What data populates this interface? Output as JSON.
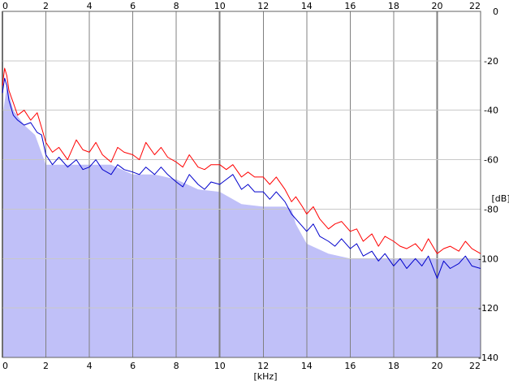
{
  "chart_data": {
    "type": "area",
    "title": "",
    "xlabel": "[kHz]",
    "ylabel": "[dB]",
    "xlim": [
      0,
      22
    ],
    "ylim": [
      -140,
      0
    ],
    "x_ticks": [
      0,
      2,
      4,
      6,
      8,
      10,
      12,
      14,
      16,
      18,
      20,
      22
    ],
    "x_tick_labels": [
      "0",
      "2",
      "4",
      "6",
      "8",
      "10",
      "12",
      "14",
      "16",
      "18",
      "20",
      "22"
    ],
    "y_ticks": [
      0,
      -20,
      -40,
      -60,
      -80,
      -100,
      -120,
      -140
    ],
    "y_tick_labels": [
      "0",
      "-20",
      "-40",
      "-60",
      "-80",
      "-100",
      "-120",
      "-140"
    ],
    "grid": true,
    "legend": "none",
    "colors": {
      "background": "#c0c0f8",
      "grid": "#808080",
      "series_red": "#ff0000",
      "series_blue": "#0000cc",
      "fill": "#c0c0f8"
    },
    "fill_area": {
      "x": [
        0,
        0.2,
        0.5,
        1.0,
        1.5,
        2.0,
        3.0,
        4.0,
        5.0,
        6.0,
        7.0,
        8.0,
        9.0,
        10.0,
        11.0,
        12.0,
        13.0,
        13.3,
        13.5,
        14.0,
        15.0,
        16.0,
        17.0,
        18.0,
        18.2,
        19.0,
        20.0,
        21.0,
        22.0
      ],
      "y": [
        -43,
        -30,
        -40,
        -46,
        -50,
        -62,
        -62,
        -62,
        -62,
        -66,
        -66,
        -68,
        -72,
        -73,
        -78,
        -79,
        -79,
        -80,
        -86,
        -94,
        -98,
        -100,
        -100,
        -100,
        -100,
        -100,
        -100,
        -100,
        -100
      ]
    },
    "series": [
      {
        "color": "#ff0000",
        "x": [
          0.0,
          0.1,
          0.2,
          0.3,
          0.5,
          0.7,
          1.0,
          1.3,
          1.6,
          1.8,
          2.0,
          2.3,
          2.6,
          3.0,
          3.4,
          3.7,
          4.0,
          4.3,
          4.6,
          5.0,
          5.3,
          5.6,
          6.0,
          6.3,
          6.6,
          7.0,
          7.3,
          7.6,
          8.0,
          8.3,
          8.6,
          9.0,
          9.3,
          9.6,
          10.0,
          10.3,
          10.6,
          11.0,
          11.3,
          11.6,
          12.0,
          12.3,
          12.6,
          13.0,
          13.3,
          13.5,
          13.8,
          14.0,
          14.3,
          14.6,
          15.0,
          15.3,
          15.6,
          16.0,
          16.3,
          16.6,
          17.0,
          17.3,
          17.6,
          18.0,
          18.3,
          18.6,
          19.0,
          19.3,
          19.6,
          20.0,
          20.3,
          20.6,
          21.0,
          21.3,
          21.6,
          22.0
        ],
        "y": [
          -30,
          -23,
          -26,
          -32,
          -37,
          -42,
          -40,
          -44,
          -41,
          -47,
          -53,
          -57,
          -55,
          -60,
          -52,
          -56,
          -57,
          -53,
          -58,
          -61,
          -55,
          -57,
          -58,
          -60,
          -53,
          -58,
          -55,
          -59,
          -61,
          -63,
          -58,
          -63,
          -64,
          -62,
          -62,
          -64,
          -62,
          -67,
          -65,
          -67,
          -67,
          -70,
          -67,
          -72,
          -77,
          -75,
          -79,
          -82,
          -79,
          -84,
          -88,
          -86,
          -85,
          -89,
          -88,
          -93,
          -90,
          -95,
          -91,
          -93,
          -95,
          -96,
          -94,
          -97,
          -92,
          -98,
          -96,
          -95,
          -97,
          -93,
          -96,
          -98
        ]
      },
      {
        "color": "#0000cc",
        "x": [
          0.0,
          0.1,
          0.2,
          0.3,
          0.5,
          0.7,
          1.0,
          1.3,
          1.6,
          1.8,
          2.0,
          2.3,
          2.6,
          3.0,
          3.4,
          3.7,
          4.0,
          4.3,
          4.6,
          5.0,
          5.3,
          5.6,
          6.0,
          6.3,
          6.6,
          7.0,
          7.3,
          7.6,
          8.0,
          8.3,
          8.6,
          9.0,
          9.3,
          9.6,
          10.0,
          10.3,
          10.6,
          11.0,
          11.3,
          11.6,
          12.0,
          12.3,
          12.6,
          13.0,
          13.3,
          13.5,
          13.8,
          14.0,
          14.3,
          14.6,
          15.0,
          15.3,
          15.6,
          16.0,
          16.3,
          16.6,
          17.0,
          17.3,
          17.6,
          18.0,
          18.3,
          18.6,
          19.0,
          19.3,
          19.6,
          20.0,
          20.3,
          20.6,
          21.0,
          21.3,
          21.6,
          22.0
        ],
        "y": [
          -33,
          -27,
          -30,
          -36,
          -42,
          -44,
          -46,
          -45,
          -49,
          -50,
          -58,
          -62,
          -59,
          -63,
          -60,
          -64,
          -63,
          -60,
          -64,
          -66,
          -62,
          -64,
          -65,
          -66,
          -63,
          -66,
          -63,
          -66,
          -69,
          -71,
          -66,
          -70,
          -72,
          -69,
          -70,
          -68,
          -66,
          -72,
          -70,
          -73,
          -73,
          -76,
          -73,
          -77,
          -82,
          -84,
          -87,
          -89,
          -86,
          -91,
          -93,
          -95,
          -92,
          -96,
          -94,
          -99,
          -97,
          -101,
          -98,
          -103,
          -100,
          -104,
          -100,
          -103,
          -99,
          -108,
          -101,
          -104,
          -102,
          -99,
          -103,
          -104
        ]
      }
    ]
  }
}
